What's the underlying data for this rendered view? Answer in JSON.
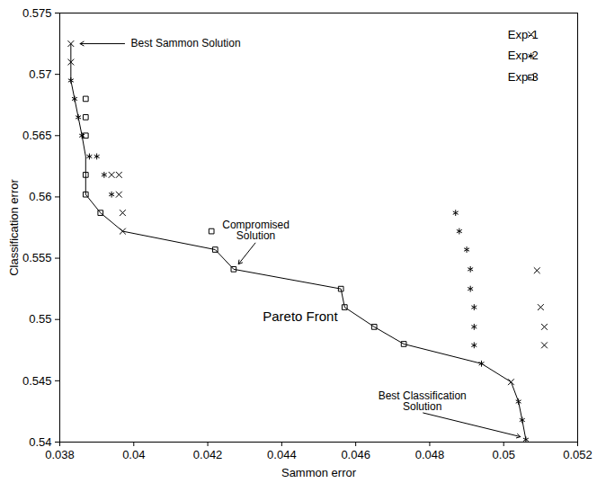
{
  "chart_data": {
    "type": "scatter",
    "x_label": "Sammon error",
    "y_label": "Classification error",
    "xlim": [
      0.038,
      0.052
    ],
    "ylim": [
      0.54,
      0.575
    ],
    "xticks": [
      0.038,
      0.04,
      0.042,
      0.044,
      0.046,
      0.048,
      0.05,
      0.052
    ],
    "yticks": [
      0.54,
      0.545,
      0.55,
      0.555,
      0.56,
      0.565,
      0.57,
      0.575
    ],
    "grid": false,
    "legend": "top-right",
    "series": [
      {
        "name": "Exp-1",
        "color": "#000000",
        "marker": "times",
        "x": [
          0.0383,
          0.0383,
          0.0397,
          0.0502,
          0.0394,
          0.0396,
          0.0396,
          0.0397,
          0.0509,
          0.051,
          0.0511,
          0.0511
        ],
        "values": [
          0.5725,
          0.571,
          0.5572,
          0.5449,
          0.5618,
          0.5618,
          0.5602,
          0.5587,
          0.554,
          0.551,
          0.5494,
          0.5479
        ]
      },
      {
        "name": "Exp-2",
        "color": "#000000",
        "marker": "asterisk",
        "x": [
          0.0383,
          0.0384,
          0.0385,
          0.0386,
          0.0494,
          0.0504,
          0.0505,
          0.0506,
          0.0388,
          0.039,
          0.0392,
          0.0394,
          0.0487,
          0.0488,
          0.049,
          0.0491,
          0.0491,
          0.0492,
          0.0492,
          0.0492
        ],
        "values": [
          0.5695,
          0.568,
          0.5665,
          0.565,
          0.5464,
          0.5433,
          0.5418,
          0.5402,
          0.5633,
          0.5633,
          0.5618,
          0.5602,
          0.5587,
          0.5572,
          0.5557,
          0.5541,
          0.5525,
          0.551,
          0.5494,
          0.5479
        ]
      },
      {
        "name": "Exp-3",
        "color": "#000000",
        "marker": "square",
        "x": [
          0.0387,
          0.0387,
          0.0391,
          0.0422,
          0.0427,
          0.0456,
          0.0457,
          0.0465,
          0.0473,
          0.0387,
          0.0387,
          0.0387,
          0.0421
        ],
        "values": [
          0.5618,
          0.5602,
          0.5587,
          0.5557,
          0.5541,
          0.5525,
          0.551,
          0.5494,
          0.548,
          0.568,
          0.5665,
          0.565,
          0.5572
        ]
      }
    ],
    "pareto_front": {
      "label": "Pareto Front",
      "label_x": 0.0445,
      "label_y": 0.5502,
      "color": "#000000",
      "x": [
        0.0383,
        0.0383,
        0.0383,
        0.0384,
        0.0385,
        0.0386,
        0.0387,
        0.0387,
        0.0387,
        0.0391,
        0.0397,
        0.0422,
        0.0427,
        0.0456,
        0.0457,
        0.0465,
        0.0473,
        0.0494,
        0.0502,
        0.0504,
        0.0505,
        0.0506
      ],
      "values": [
        0.5725,
        0.571,
        0.5695,
        0.568,
        0.5665,
        0.565,
        0.5633,
        0.5618,
        0.5602,
        0.5587,
        0.5572,
        0.5557,
        0.5541,
        0.5525,
        0.551,
        0.5494,
        0.548,
        0.5464,
        0.5449,
        0.5433,
        0.5418,
        0.5402
      ]
    },
    "annotations": [
      {
        "text": "Best Sammon Solution",
        "x": 0.0398,
        "y": 0.5725,
        "point_x": 0.0385,
        "point_y": 0.5725
      },
      {
        "text": "Compromised\nSolution",
        "x": 0.0433,
        "y": 0.5563,
        "point_x": 0.0428,
        "point_y": 0.5544
      },
      {
        "text": "Best Classification\nSolution",
        "x": 0.0478,
        "y": 0.5424,
        "point_x": 0.0505,
        "point_y": 0.5404
      }
    ]
  }
}
